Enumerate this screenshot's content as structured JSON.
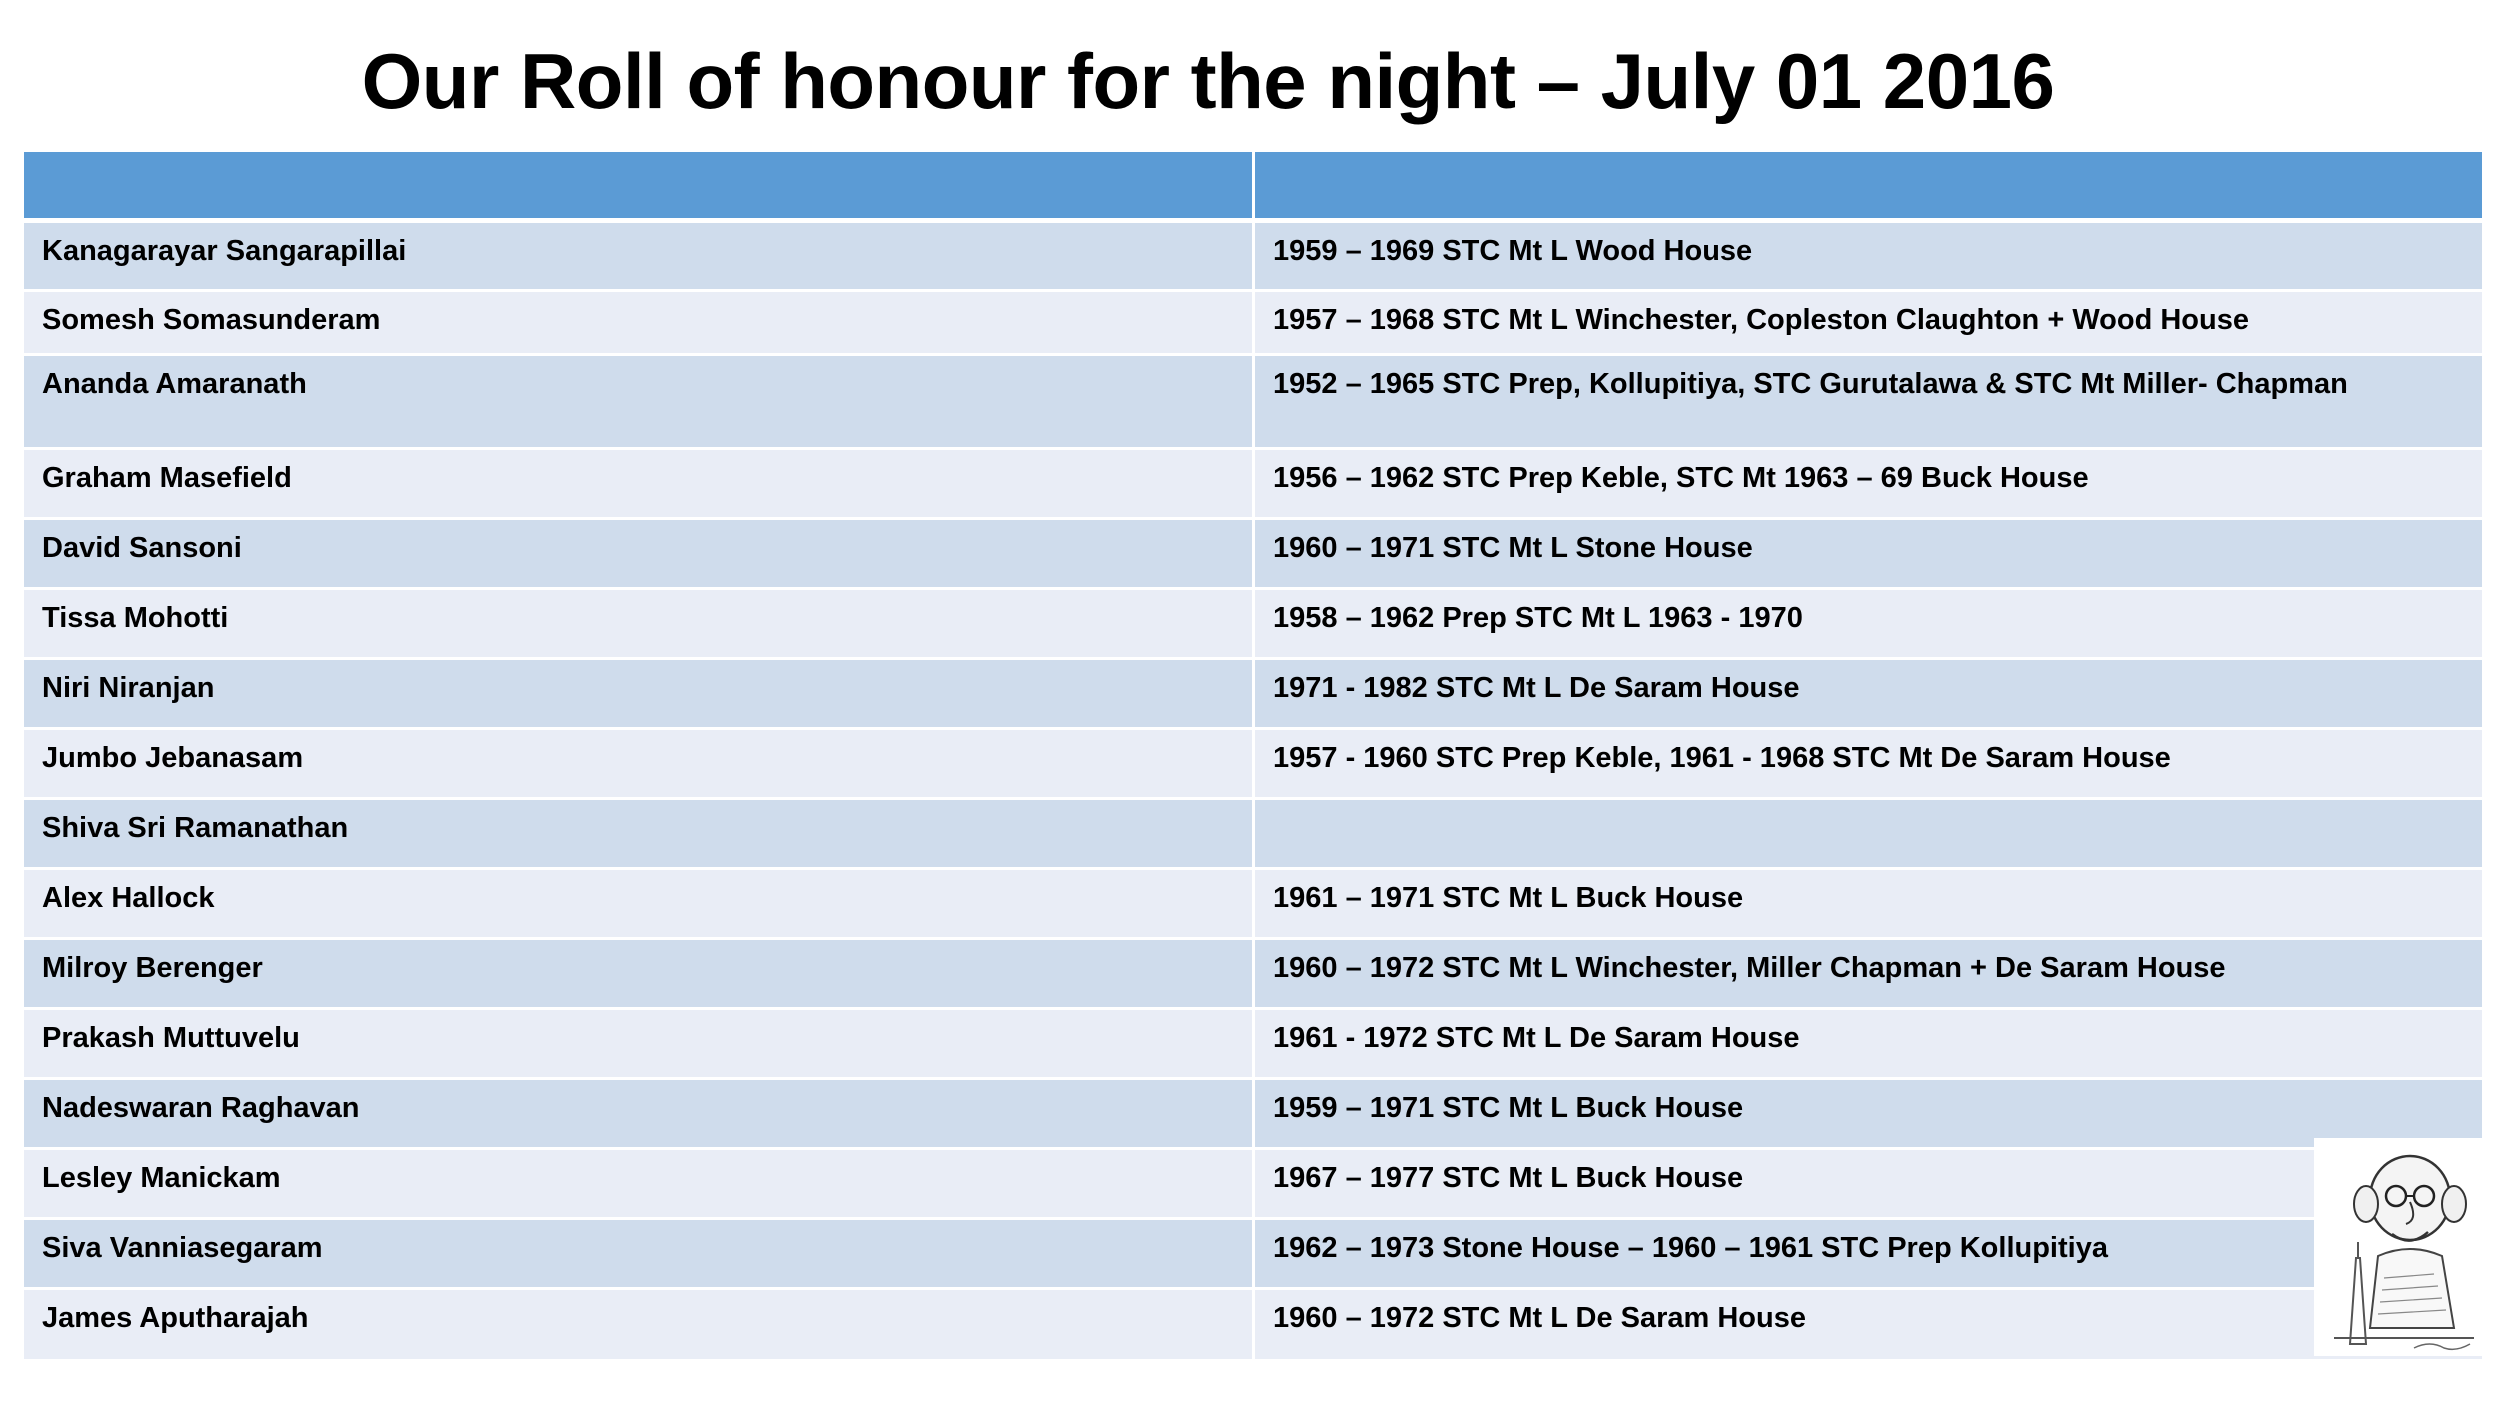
{
  "title": "Our Roll of honour for the night – July 01 2016",
  "table": {
    "header": [
      "",
      ""
    ],
    "rows": [
      {
        "name": "Kanagarayar Sangarapillai",
        "detail": "1959 – 1969 STC Mt L Wood House"
      },
      {
        "name": "Somesh Somasunderam",
        "detail": "1957 – 1968 STC Mt L Winchester, Copleston Claughton + Wood House"
      },
      {
        "name": "Ananda Amaranath",
        "detail": "1952 – 1965 STC Prep, Kollupitiya, STC Gurutalawa & STC Mt Miller- Chapman"
      },
      {
        "name": "Graham Masefield",
        "detail": "1956 – 1962 STC Prep Keble, STC Mt 1963 – 69 Buck House"
      },
      {
        "name": "David Sansoni",
        "detail": "1960 – 1971 STC Mt L Stone House"
      },
      {
        "name": "Tissa Mohotti",
        "detail": "1958 – 1962 Prep STC Mt L 1963 - 1970"
      },
      {
        "name": "Niri Niranjan",
        "detail": "1971 - 1982 STC Mt L De Saram House"
      },
      {
        "name": "Jumbo Jebanasam",
        "detail": "1957 - 1960 STC Prep Keble, 1961 - 1968 STC Mt De Saram House"
      },
      {
        "name": "Shiva Sri Ramanathan",
        "detail": ""
      },
      {
        "name": "Alex Hallock",
        "detail": "1961 – 1971 STC Mt L Buck House"
      },
      {
        "name": "Milroy Berenger",
        "detail": "1960 – 1972 STC Mt L Winchester, Miller Chapman + De Saram House"
      },
      {
        "name": "Prakash Muttuvelu",
        "detail": "1961 - 1972 STC Mt L De Saram House"
      },
      {
        "name": "Nadeswaran Raghavan",
        "detail": "1959 – 1971 STC Mt L Buck House"
      },
      {
        "name": "Lesley Manickam",
        "detail": "1967 – 1977 STC Mt L Buck House"
      },
      {
        "name": "Siva Vanniasegaram",
        "detail": "1962 – 1973 Stone House – 1960 – 1961 STC Prep Kollupitiya"
      },
      {
        "name": "James Aputharajah",
        "detail": "1960 – 1972 STC Mt L De Saram House"
      }
    ]
  },
  "caricature": {
    "icon": "caricature-sketch"
  }
}
